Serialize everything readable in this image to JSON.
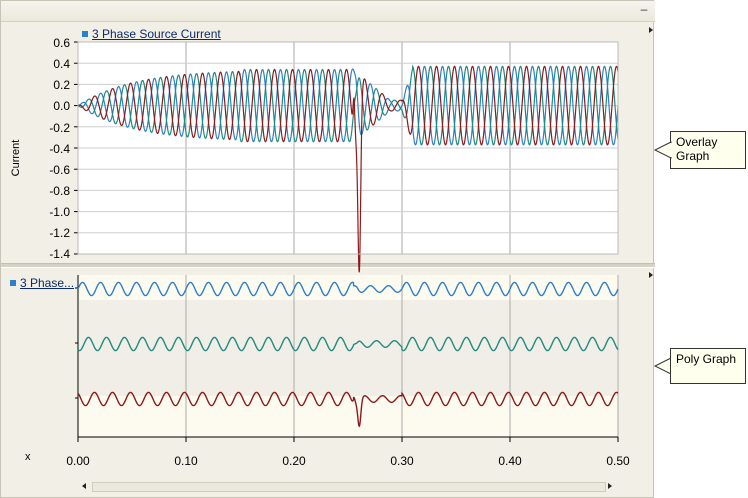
{
  "overlay": {
    "legend_label": "3 Phase Source Current",
    "ylabel": "Current",
    "yticks": [
      "0.6",
      "0.4",
      "0.2",
      "0.0",
      "-0.2",
      "-0.4",
      "-0.6",
      "-0.8",
      "-1.0",
      "-1.2",
      "-1.4"
    ]
  },
  "poly": {
    "legend_label": "3 Phase..."
  },
  "xaxis": {
    "label": "x",
    "ticks": [
      "0.00",
      "0.10",
      "0.20",
      "0.30",
      "0.40",
      "0.50"
    ]
  },
  "callouts": {
    "overlay_line1": "Overlay",
    "overlay_line2": "Graph",
    "poly": "Poly Graph"
  },
  "colors": {
    "phase_a": "#2f7fc8",
    "phase_b": "#1f8a80",
    "phase_c": "#8b1a1a",
    "plot_bg": "#fdfbef",
    "grid": "#a9a9a9"
  },
  "chart_data": [
    {
      "type": "line",
      "title": "3 Phase Source Current",
      "ylabel": "Current",
      "xlabel": "x",
      "xlim": [
        0.0,
        0.5
      ],
      "ylim": [
        -1.4,
        0.6
      ],
      "grid": true,
      "legend": "top-left",
      "series": [
        {
          "name": "3 Phase Source Current",
          "x": [
            0.0,
            0.05,
            0.1,
            0.15,
            0.2,
            0.25,
            0.255,
            0.26,
            0.265,
            0.27,
            0.3,
            0.31,
            0.35,
            0.4,
            0.45,
            0.5
          ],
          "amplitude": [
            0.0,
            0.25,
            0.3,
            0.33,
            0.34,
            0.34,
            0.45,
            -1.25,
            0.3,
            0.2,
            0.1,
            0.37,
            0.37,
            0.37,
            0.37,
            0.37
          ]
        }
      ]
    },
    {
      "type": "line",
      "title": "3 Phase...",
      "xlim": [
        0.0,
        0.5
      ],
      "grid": true,
      "legend": "top-left"
    }
  ]
}
